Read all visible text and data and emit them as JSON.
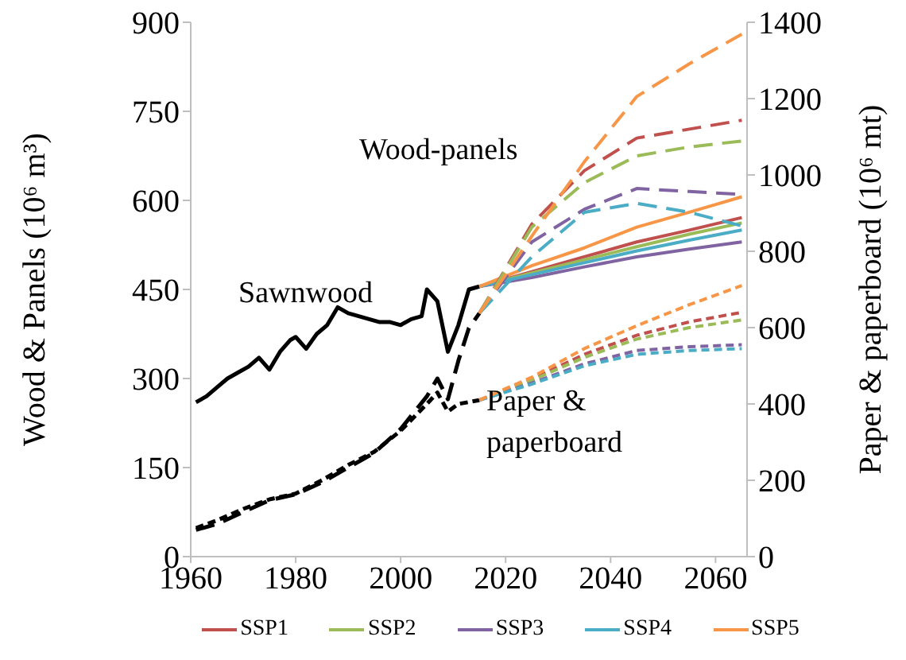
{
  "chart_data": {
    "type": "line",
    "ylabel": "Wood & Panels (10⁶ m³)",
    "y2label": "Paper & paperboard (10⁶ mt)",
    "xlim": [
      1960,
      2066
    ],
    "xticks": [
      1960,
      1980,
      2000,
      2020,
      2040,
      2060
    ],
    "ylim": [
      0,
      900
    ],
    "yticks": [
      0,
      150,
      300,
      450,
      600,
      750,
      900
    ],
    "y2lim": [
      0,
      1400
    ],
    "y2ticks": [
      0,
      200,
      400,
      600,
      800,
      1000,
      1200,
      1400
    ],
    "legend": "bottom",
    "grid": false,
    "marker": "none",
    "annotations": [
      "Sawnwood",
      "Wood-panels",
      "Paper & paperboard"
    ],
    "series": [
      {
        "color": "#000000",
        "line_style": "solid",
        "x": [
          1961,
          1963,
          1965,
          1967,
          1969,
          1971,
          1973,
          1975,
          1977,
          1979,
          1980,
          1982,
          1984,
          1986,
          1988,
          1990,
          1992,
          1994,
          1996,
          1998,
          2000,
          2002,
          2004,
          2005,
          2007,
          2009,
          2011,
          2013,
          2015
        ],
        "values": [
          260,
          270,
          285,
          300,
          310,
          320,
          335,
          315,
          345,
          365,
          370,
          350,
          375,
          390,
          420,
          410,
          405,
          400,
          395,
          395,
          390,
          400,
          405,
          450,
          430,
          345,
          390,
          450,
          455
        ]
      },
      {
        "color": "#000000",
        "line_style": "dashed",
        "x": [
          1961,
          1965,
          1970,
          1975,
          1980,
          1985,
          1990,
          1995,
          2000,
          2005,
          2007,
          2009,
          2011,
          2013,
          2015
        ],
        "values": [
          45,
          55,
          75,
          95,
          105,
          125,
          150,
          175,
          215,
          270,
          300,
          265,
          330,
          385,
          410
        ]
      },
      {
        "color": "#000000",
        "line_style": "dashed",
        "axis": "y2",
        "x": [
          1961,
          1965,
          1970,
          1975,
          1980,
          1985,
          1990,
          1995,
          2000,
          2005,
          2007,
          2009,
          2011,
          2013,
          2015
        ],
        "values": [
          75,
          95,
          125,
          150,
          165,
          200,
          240,
          275,
          330,
          400,
          430,
          380,
          400,
          405,
          410
        ]
      },
      {
        "name": "SSP1",
        "color": "#c0504d",
        "line_style": "solid",
        "x": [
          2015,
          2025,
          2035,
          2045,
          2055,
          2065
        ],
        "values": [
          455,
          480,
          505,
          530,
          550,
          571
        ]
      },
      {
        "name": "SSP2",
        "color": "#9bbb59",
        "line_style": "solid",
        "x": [
          2015,
          2025,
          2035,
          2045,
          2055,
          2065
        ],
        "values": [
          455,
          478,
          500,
          522,
          543,
          562
        ]
      },
      {
        "name": "SSP3",
        "color": "#8064a2",
        "line_style": "solid",
        "x": [
          2015,
          2025,
          2035,
          2045,
          2055,
          2065
        ],
        "values": [
          455,
          470,
          488,
          505,
          518,
          530
        ]
      },
      {
        "name": "SSP4",
        "color": "#4bacc6",
        "line_style": "solid",
        "x": [
          2015,
          2025,
          2035,
          2045,
          2055,
          2065
        ],
        "values": [
          455,
          475,
          495,
          515,
          533,
          550
        ]
      },
      {
        "name": "SSP5",
        "color": "#f79646",
        "line_style": "solid",
        "x": [
          2015,
          2025,
          2035,
          2045,
          2055,
          2065
        ],
        "values": [
          455,
          490,
          520,
          555,
          580,
          606
        ]
      },
      {
        "color": "#c0504d",
        "line_style": "dashed",
        "x": [
          2015,
          2025,
          2035,
          2045,
          2055,
          2065
        ],
        "values": [
          410,
          560,
          650,
          705,
          720,
          735
        ]
      },
      {
        "color": "#9bbb59",
        "line_style": "dashed",
        "x": [
          2015,
          2025,
          2035,
          2045,
          2055,
          2065
        ],
        "values": [
          410,
          555,
          630,
          675,
          690,
          700
        ]
      },
      {
        "color": "#8064a2",
        "line_style": "dashed",
        "x": [
          2015,
          2025,
          2035,
          2045,
          2055,
          2065
        ],
        "values": [
          410,
          530,
          585,
          620,
          615,
          610
        ]
      },
      {
        "color": "#4bacc6",
        "line_style": "dashed",
        "x": [
          2015,
          2025,
          2035,
          2045,
          2055,
          2065
        ],
        "values": [
          410,
          505,
          580,
          595,
          580,
          557
        ]
      },
      {
        "color": "#f79646",
        "line_style": "dashed",
        "x": [
          2015,
          2025,
          2035,
          2045,
          2055,
          2065
        ],
        "values": [
          410,
          540,
          665,
          775,
          830,
          880
        ]
      },
      {
        "color": "#c0504d",
        "line_style": "dashed",
        "axis": "y2",
        "x": [
          2015,
          2025,
          2035,
          2045,
          2055,
          2065
        ],
        "values": [
          410,
          465,
          530,
          580,
          615,
          640
        ]
      },
      {
        "color": "#9bbb59",
        "line_style": "dashed",
        "axis": "y2",
        "x": [
          2015,
          2025,
          2035,
          2045,
          2055,
          2065
        ],
        "values": [
          410,
          462,
          522,
          570,
          600,
          620
        ]
      },
      {
        "color": "#8064a2",
        "line_style": "dashed",
        "axis": "y2",
        "x": [
          2015,
          2025,
          2035,
          2045,
          2055,
          2065
        ],
        "values": [
          410,
          455,
          505,
          540,
          550,
          555
        ]
      },
      {
        "color": "#4bacc6",
        "line_style": "dashed",
        "axis": "y2",
        "x": [
          2015,
          2025,
          2035,
          2045,
          2055,
          2065
        ],
        "values": [
          410,
          452,
          500,
          530,
          540,
          545
        ]
      },
      {
        "color": "#f79646",
        "line_style": "dashed",
        "axis": "y2",
        "x": [
          2015,
          2025,
          2035,
          2045,
          2055,
          2065
        ],
        "values": [
          410,
          470,
          545,
          605,
          660,
          710
        ]
      }
    ]
  }
}
